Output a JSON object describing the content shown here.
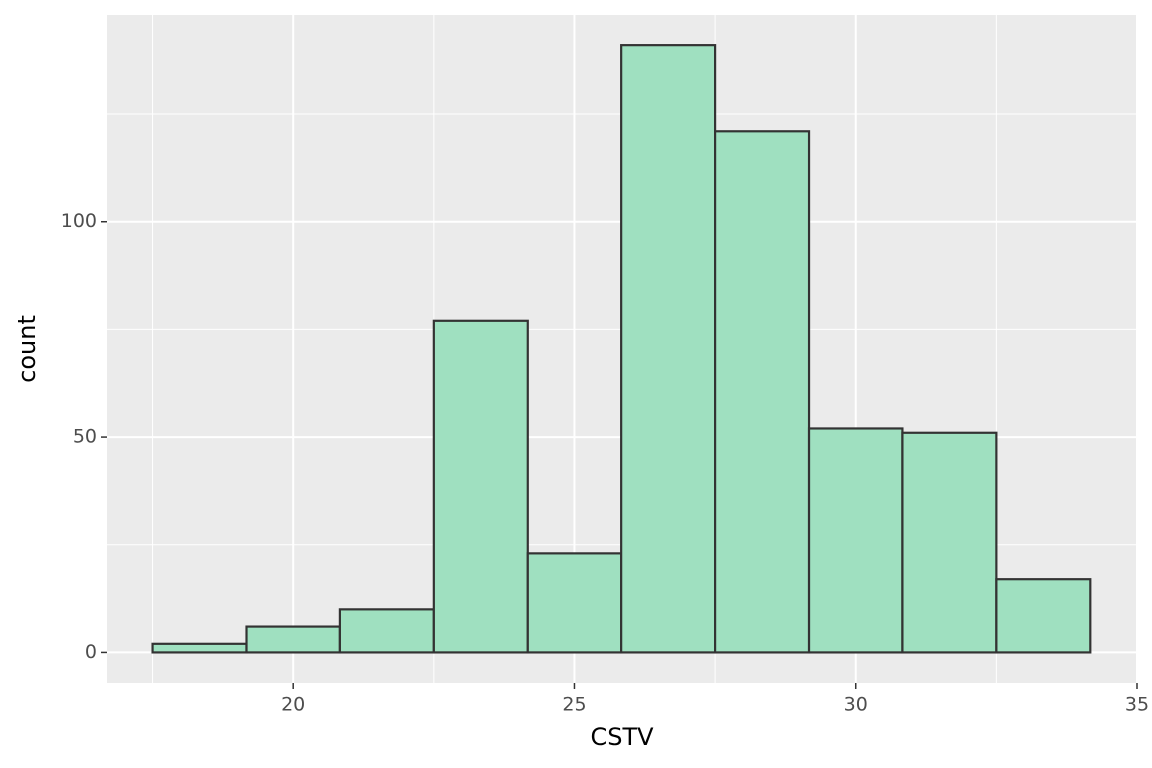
{
  "chart_data": {
    "type": "histogram",
    "x_label": "CSTV",
    "y_label": "count",
    "bins": [
      17.5,
      19.17,
      20.83,
      22.5,
      24.17,
      25.83,
      27.5,
      29.17,
      30.83,
      32.5,
      34.17
    ],
    "values": [
      2,
      6,
      10,
      77,
      23,
      141,
      121,
      52,
      51,
      17
    ],
    "color": "#9fe0c0",
    "edge_color": "#333333",
    "xlim": [
      16.69,
      35.0
    ],
    "xticks": [
      20,
      25,
      30,
      35
    ],
    "ylim": [
      -7.1,
      148
    ],
    "yticks": [
      0,
      50,
      100
    ],
    "grid": true
  }
}
